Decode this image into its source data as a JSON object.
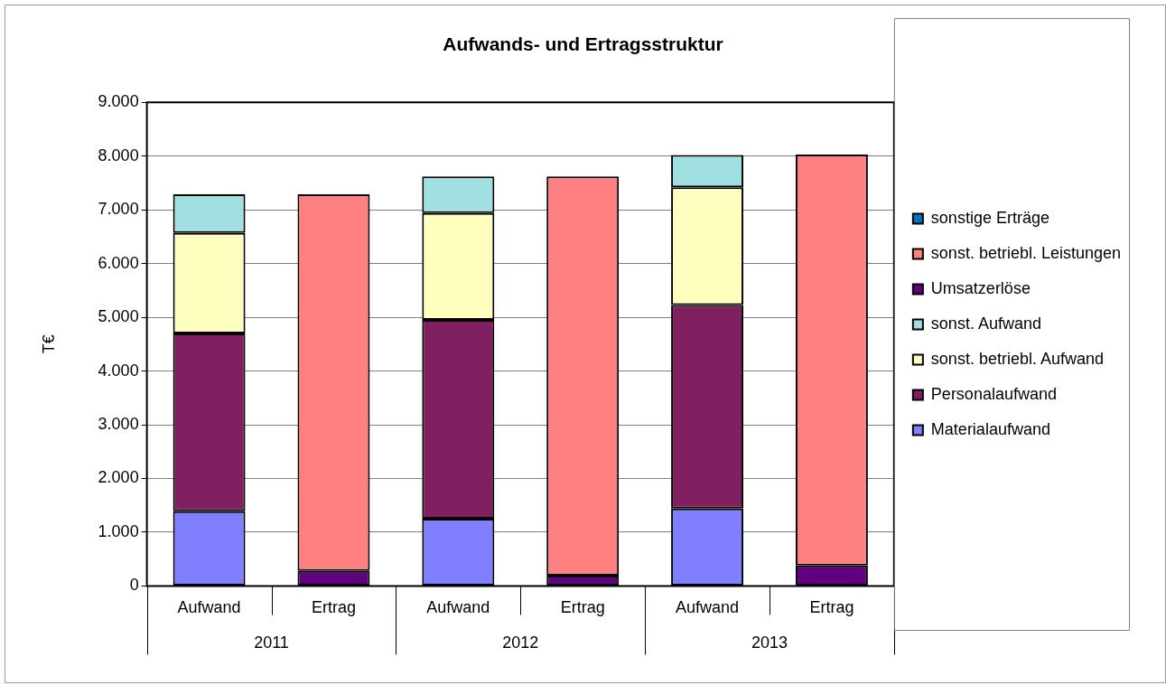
{
  "chart_data": {
    "type": "bar",
    "title": "Aufwands- und Ertragsstruktur",
    "ylabel": "T€",
    "categories": [
      "Aufwand",
      "Ertrag",
      "Aufwand",
      "Ertrag",
      "Aufwand",
      "Ertrag"
    ],
    "annotations": [
      "2011",
      "2012",
      "2013"
    ],
    "stacked": true,
    "ylim": [
      0,
      9000
    ],
    "yticks": [
      {
        "value": 0,
        "label": "0"
      },
      {
        "value": 1000,
        "label": "1.000"
      },
      {
        "value": 2000,
        "label": "2.000"
      },
      {
        "value": 3000,
        "label": "3.000"
      },
      {
        "value": 4000,
        "label": "4.000"
      },
      {
        "value": 5000,
        "label": "5.000"
      },
      {
        "value": 6000,
        "label": "6.000"
      },
      {
        "value": 7000,
        "label": "7.000"
      },
      {
        "value": 8000,
        "label": "8.000"
      },
      {
        "value": 9000,
        "label": "9.000"
      }
    ],
    "grid": "y",
    "legend": "right",
    "series": [
      {
        "name": "Materialaufwand",
        "color": "#8080ff",
        "values": [
          1390,
          null,
          1250,
          null,
          1440,
          null
        ]
      },
      {
        "name": "Personalaufwand",
        "color": "#802060",
        "values": [
          3310,
          null,
          3700,
          null,
          3790,
          null
        ]
      },
      {
        "name": "sonst. betriebl. Aufwand",
        "color": "#ffffc0",
        "values": [
          1870,
          null,
          1990,
          null,
          2190,
          null
        ]
      },
      {
        "name": "sonst. Aufwand",
        "color": "#a0e0e0",
        "values": [
          720,
          null,
          680,
          null,
          600,
          null
        ]
      },
      {
        "name": "Umsatzerlöse",
        "color": "#600080",
        "values": [
          null,
          280,
          null,
          190,
          null,
          380
        ]
      },
      {
        "name": "sonst. betriebl. Leistungen",
        "color": "#ff8080",
        "values": [
          null,
          7010,
          null,
          7430,
          null,
          7650
        ]
      },
      {
        "name": "sonstige Erträge",
        "color": "#0070c0",
        "values": [
          null,
          0,
          null,
          0,
          null,
          0
        ]
      }
    ]
  }
}
